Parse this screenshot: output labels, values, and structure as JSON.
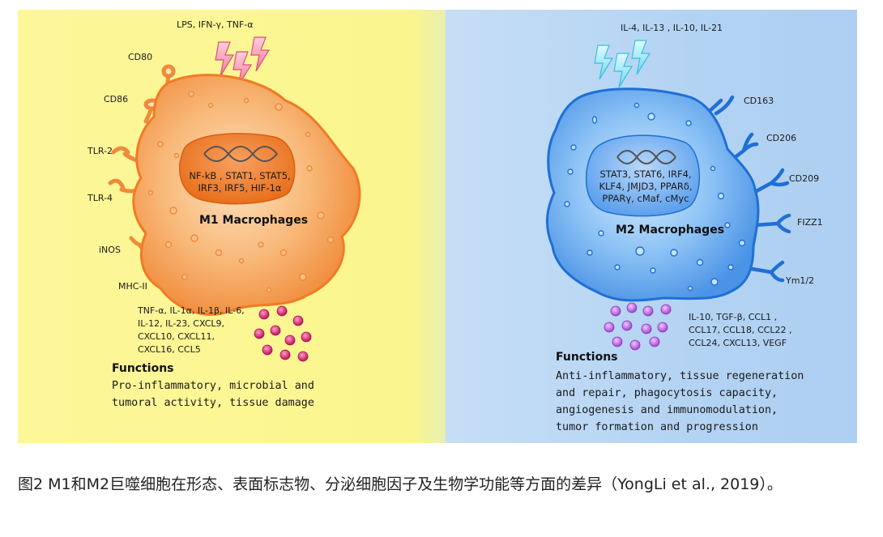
{
  "m1": {
    "stimuli": "LPS, IFN-γ, TNF-α",
    "receptors": [
      "CD80",
      "CD86",
      "TLR-2",
      "TLR-4",
      "iNOS",
      "MHC-II"
    ],
    "nucleus_text": "NF-kB , STAT1, STAT5,\nIRF3, IRF5, HIF-1α",
    "title": "M1 Macrophages",
    "cytokines": "TNF-α, IL-1α, IL-1β, IL-6,\nIL-12, IL-23, CXCL9,\nCXCL10, CXCL11,\nCXCL16, CCL5",
    "functions_heading": "Functions",
    "functions_text": "Pro-inflammatory, microbial and tumoral activity, tissue damage"
  },
  "m2": {
    "stimuli": "IL-4, IL-13 , IL-10, IL-21",
    "receptors": [
      "CD163",
      "CD206",
      "CD209",
      "FIZZ1",
      "Ym1/2"
    ],
    "nucleus_text": "STAT3, STAT6, IRF4,\nKLF4, JMJD3, PPARδ,\nPPARγ, cMaf, cMyc",
    "title": "M2 Macrophages",
    "cytokines": "IL-10, TGF-β, CCL1 ,\nCCL17, CCL18, CCL22 ,\nCCL24, CXCL13, VEGF",
    "functions_heading": "Functions",
    "functions_text": "Anti-inflammatory, tissue regeneration and repair, phagocytosis capacity, angiogenesis and immunomodulation, tumor formation and progression"
  },
  "caption": "图2 M1和M2巨噬细胞在形态、表面标志物、分泌细胞因子及生物学功能等方面的差异（YongLi et al., 2019）。",
  "colors": {
    "m1_panel": "#fbf58e",
    "m2_panel": "#b3d3f3",
    "m1_cell": "#f5a25a",
    "m2_cell": "#5aa0ea",
    "m1_granule": "#c8246a",
    "m2_granule": "#b063d8"
  }
}
